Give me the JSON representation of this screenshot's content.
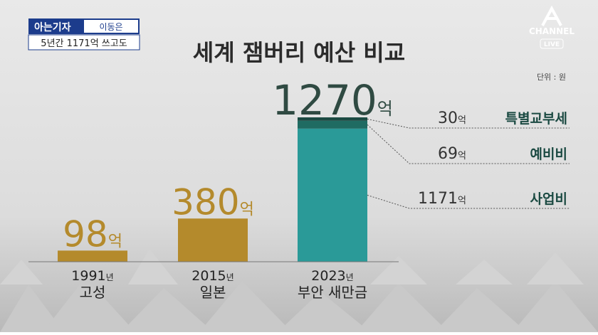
{
  "header": {
    "tag": "아는기자",
    "reporter": "이동은",
    "headline": "5년간 1171억 쓰고도"
  },
  "logo": {
    "name": "CHANNEL",
    "live": "LIVE"
  },
  "chart_data": {
    "type": "bar",
    "title": "세계 잼버리 예산 비교",
    "unit": "단위 : 원",
    "years": [
      "1991년",
      "2015년",
      "2023년"
    ],
    "categories": [
      "고성",
      "일본",
      "부안 새만금"
    ],
    "values": [
      98,
      380,
      1270
    ],
    "value_labels": [
      "98억",
      "380억",
      "1270억"
    ],
    "color": "#b48a2c",
    "stack": [
      {
        "name": "사업비",
        "value": 1171,
        "value_label": "1171억",
        "color": "#2a9a98"
      },
      {
        "name": "예비비",
        "value": 69,
        "value_label": "69억",
        "color": "#1f6b62"
      },
      {
        "name": "특별교부세",
        "value": 30,
        "value_label": "30억",
        "color": "#1b4a42"
      }
    ]
  }
}
